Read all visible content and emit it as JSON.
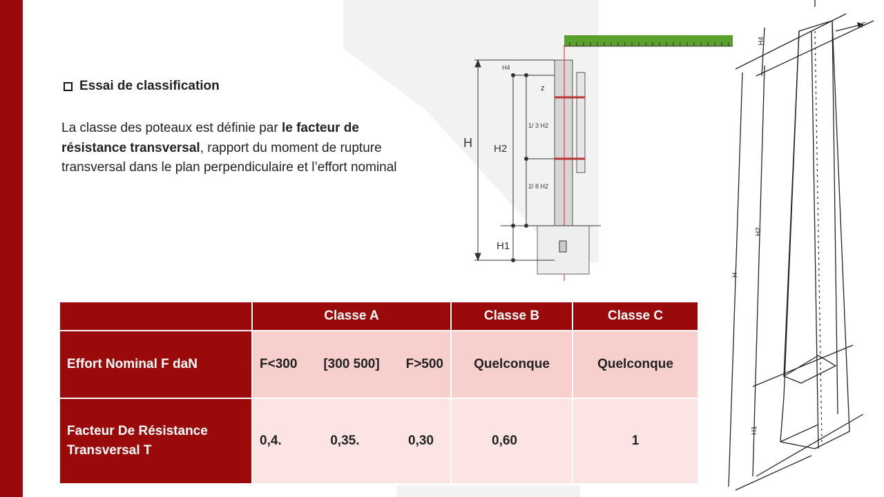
{
  "heading": "Essai de classification",
  "paragraph": {
    "part1": "La classe des poteaux est définie par  ",
    "bold1": "le facteur de résistance transversal",
    "part2": ", rapport du moment de rupture transversal dans le plan perpendiculaire et l’effort nominal"
  },
  "table": {
    "headers": [
      "",
      "Classe A",
      "Classe B",
      "Classe C"
    ],
    "row1": {
      "label": "Effort Nominal F daN",
      "classA": [
        "F<300",
        "[300 500]",
        "F>500"
      ],
      "classB": "Quelconque",
      "classC": "Quelconque"
    },
    "row2": {
      "label": "Facteur De Résistance Transversal T",
      "classA": [
        "0,4.",
        "0,35.",
        "0,30"
      ],
      "classB": "0,60",
      "classC": "1"
    }
  },
  "diagram_mid": {
    "labels": {
      "h4": "H4",
      "z": "z",
      "h": "H",
      "h2": "H2",
      "third": "1/ 3 H2",
      "twoeighth": "2/ 8 H2",
      "h1": "H1"
    }
  },
  "diagram_right": {
    "labels": {
      "f": "F",
      "h4": "H4",
      "h2": "H2",
      "h": "H",
      "h1": "H1"
    }
  },
  "colors": {
    "accent": "#9b0a0a",
    "row1": "#f7cfcd",
    "row2": "#fbe4e3",
    "ruler": "#5aa02c"
  }
}
